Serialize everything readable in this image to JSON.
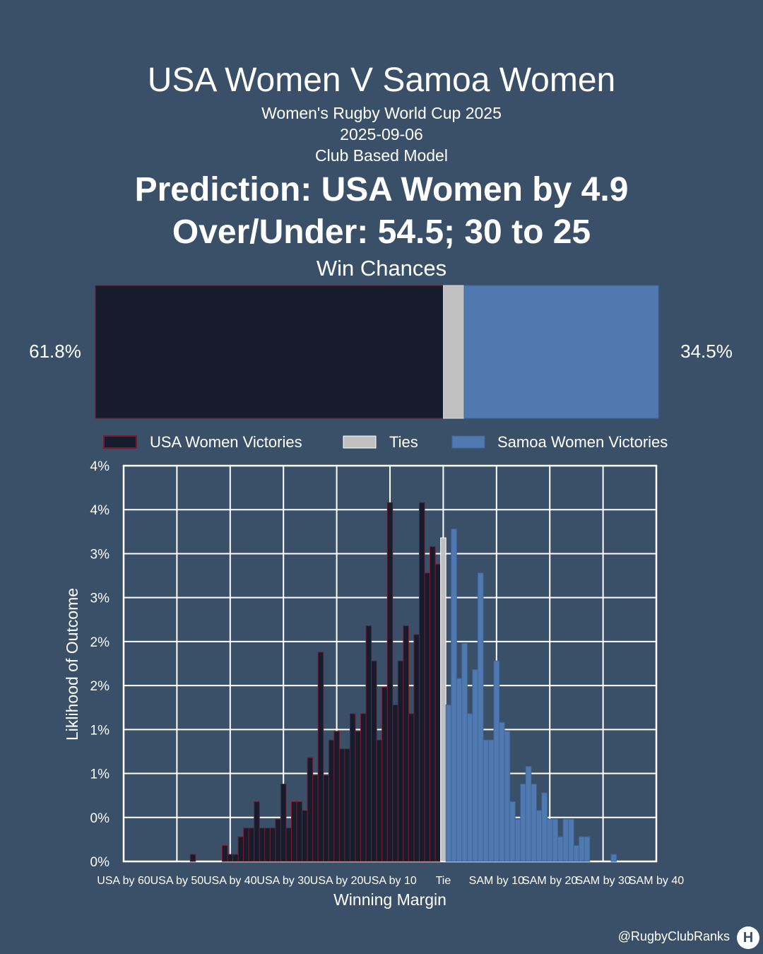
{
  "header": {
    "title": "USA Women V Samoa Women",
    "competition": "Women's Rugby World Cup 2025",
    "date": "2025-09-06",
    "model": "Club Based Model",
    "prediction": "Prediction: USA Women by 4.9",
    "over_under": "Over/Under: 54.5; 30 to 25"
  },
  "win_chances": {
    "label": "Win Chances",
    "usa_pct": 61.8,
    "tie_pct": 3.7,
    "samoa_pct": 34.5,
    "usa_label": "61.8%",
    "samoa_label": "34.5%"
  },
  "legend": {
    "usa": "USA Women Victories",
    "tie": "Ties",
    "samoa": "Samoa Women Victories"
  },
  "colors": {
    "background": "#3a5068",
    "usa": "#161c2c",
    "usa_edge": "#7a1a2e",
    "tie": "#c0c0c0",
    "samoa": "#5079b0"
  },
  "chart_data": {
    "type": "bar",
    "title": "",
    "xlabel": "Winning Margin",
    "ylabel": "Liklihood of Outcome",
    "ylim": [
      0,
      4.5
    ],
    "xlim": [
      -60,
      40
    ],
    "y_ticks": [
      0,
      0.5,
      1.0,
      1.5,
      2.0,
      2.5,
      3.0,
      3.5,
      4.0,
      4.5
    ],
    "y_tick_labels": [
      "0%",
      "0%",
      "1%",
      "1%",
      "2%",
      "2%",
      "3%",
      "3%",
      "4%",
      "4%"
    ],
    "x_ticks": [
      -60,
      -50,
      -40,
      -30,
      -20,
      -10,
      0,
      10,
      20,
      30,
      40
    ],
    "x_tick_labels": [
      "USA by 60",
      "USA by 50",
      "USA by 40",
      "USA by 30",
      "USA by 20",
      "USA by 10",
      "Tie",
      "SAM by 10",
      "SAM by 20",
      "SAM by 30",
      "SAM by 40"
    ],
    "grid": true,
    "legend_position": "top",
    "series": [
      {
        "name": "USA Women Victories",
        "x": [
          -47,
          -41,
          -40,
          -39,
          -38,
          -37,
          -36,
          -35,
          -34,
          -33,
          -32,
          -31,
          -30,
          -29,
          -28,
          -27,
          -26,
          -25,
          -24,
          -23,
          -22,
          -21,
          -20,
          -19,
          -18,
          -17,
          -16,
          -15,
          -14,
          -13,
          -12,
          -11,
          -10,
          -9,
          -8,
          -7,
          -6,
          -5,
          -4,
          -3,
          -2,
          -1
        ],
        "values": [
          0.08,
          0.18,
          0.08,
          0.08,
          0.28,
          0.38,
          0.38,
          0.68,
          0.38,
          0.38,
          0.38,
          0.48,
          0.88,
          0.38,
          0.68,
          0.68,
          0.58,
          1.18,
          0.98,
          2.38,
          0.98,
          1.38,
          1.48,
          1.28,
          1.28,
          1.68,
          1.48,
          1.68,
          2.68,
          2.28,
          1.38,
          1.98,
          4.08,
          1.78,
          2.28,
          2.68,
          1.68,
          2.58,
          4.08,
          3.28,
          3.58,
          3.38
        ]
      },
      {
        "name": "Ties",
        "x": [
          0
        ],
        "values": [
          3.68
        ]
      },
      {
        "name": "Samoa Women Victories",
        "x": [
          1,
          2,
          3,
          4,
          5,
          6,
          7,
          8,
          9,
          10,
          11,
          12,
          13,
          14,
          15,
          16,
          17,
          18,
          19,
          20,
          21,
          22,
          23,
          24,
          25,
          26,
          27,
          28,
          29,
          32
        ],
        "values": [
          1.78,
          3.78,
          2.08,
          2.48,
          1.68,
          2.18,
          3.28,
          1.38,
          1.38,
          2.28,
          1.58,
          1.48,
          0.68,
          0.48,
          0.88,
          1.08,
          0.88,
          0.58,
          0.78,
          0.48,
          0.48,
          0.28,
          0.48,
          0.48,
          0.18,
          0.28,
          0.28,
          0.0,
          0.0,
          0.08
        ]
      }
    ]
  },
  "footer": {
    "handle": "@RugbyClubRanks",
    "logo_glyph": "H"
  }
}
